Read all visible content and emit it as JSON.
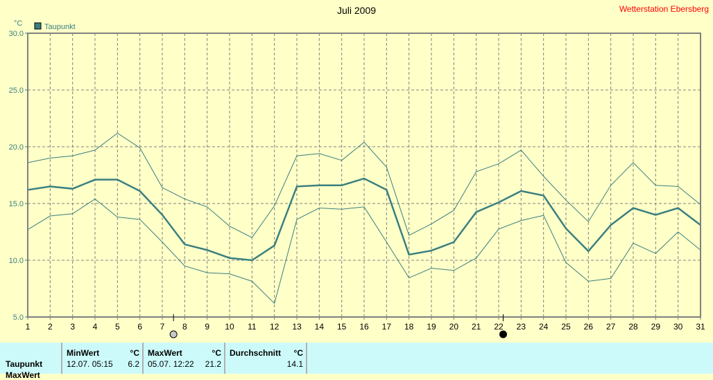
{
  "station": "Wetterstation Ebersberg",
  "chart_data": {
    "type": "line",
    "title": "Juli 2009",
    "ylabel": "°C",
    "ylim": [
      5,
      30
    ],
    "yticks": [
      "5.0",
      "10.0",
      "15.0",
      "20.0",
      "25.0",
      "30.0"
    ],
    "x": [
      1,
      2,
      3,
      4,
      5,
      6,
      7,
      8,
      9,
      10,
      11,
      12,
      13,
      14,
      15,
      16,
      17,
      18,
      19,
      20,
      21,
      22,
      23,
      24,
      25,
      26,
      27,
      28,
      29,
      30,
      31
    ],
    "grid": true,
    "legend": "top-left",
    "series": [
      {
        "name": "Taupunkt",
        "role": "mean",
        "color": "#3a7f80",
        "values": [
          16.2,
          16.5,
          16.3,
          17.1,
          17.1,
          16.1,
          14.0,
          11.4,
          10.9,
          10.2,
          10.0,
          11.3,
          16.5,
          16.6,
          16.6,
          17.2,
          16.2,
          10.5,
          10.85,
          11.6,
          14.25,
          15.1,
          16.1,
          15.7,
          12.8,
          10.8,
          13.1,
          14.6,
          14.0,
          14.6,
          13.1
        ]
      },
      {
        "role": "max",
        "color": "#3a7f80",
        "values": [
          18.6,
          19.0,
          19.2,
          19.7,
          21.2,
          19.9,
          16.4,
          15.4,
          14.7,
          13.0,
          12.0,
          14.8,
          19.2,
          19.4,
          18.8,
          20.4,
          18.2,
          12.2,
          13.2,
          14.4,
          17.8,
          18.5,
          19.7,
          17.4,
          15.3,
          13.4,
          16.6,
          18.6,
          16.6,
          16.5,
          14.9
        ]
      },
      {
        "role": "min",
        "color": "#3a7f80",
        "values": [
          12.7,
          13.9,
          14.1,
          15.4,
          13.8,
          13.6,
          11.6,
          9.5,
          8.9,
          8.8,
          8.15,
          6.2,
          13.6,
          14.6,
          14.5,
          14.7,
          11.6,
          8.45,
          9.3,
          9.1,
          10.2,
          12.75,
          13.5,
          13.95,
          9.8,
          8.15,
          8.4,
          11.5,
          10.6,
          12.5,
          10.9
        ]
      }
    ],
    "moon_phases": [
      {
        "day": 7.5,
        "phase": "full-moon"
      },
      {
        "day": 22.2,
        "phase": "new-moon"
      }
    ]
  },
  "table": {
    "row_label": "Taupunkt",
    "next_row_label": "MaxWert",
    "min": {
      "header": "MinWert",
      "unit": "°C",
      "datetime": "12.07.  05:15",
      "value": "6.2"
    },
    "max": {
      "header": "MaxWert",
      "unit": "°C",
      "datetime": "05.07.  12:22",
      "value": "21.2"
    },
    "avg": {
      "header": "Durchschnitt",
      "unit": "°C",
      "value": "14.1"
    }
  }
}
